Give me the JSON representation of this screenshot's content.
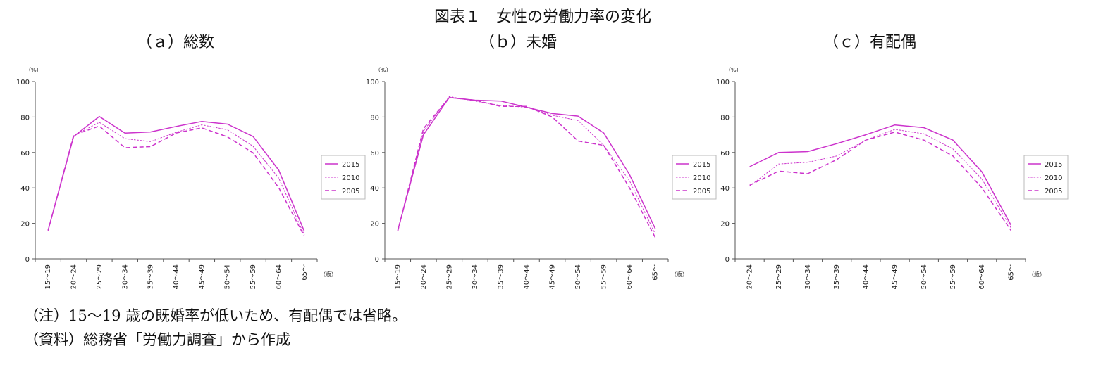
{
  "figure_title": "図表１　女性の労働力率の変化",
  "notes": {
    "note1": "（注）15～19 歳の既婚率が低いため、有配偶では省略。",
    "note2": "（資料）総務省「労働力調査」から作成"
  },
  "colors": {
    "line": "#cc33cc",
    "axis": "#555555"
  },
  "chart_data": [
    {
      "type": "line",
      "title": "（ａ）総数",
      "unit_label": "（%）",
      "x_unit": "（歳）",
      "categories": [
        "15～19",
        "20～24",
        "25～29",
        "30～34",
        "35～39",
        "40～44",
        "45～49",
        "50～54",
        "55～59",
        "60～64",
        "65～"
      ],
      "ylim": [
        0,
        100
      ],
      "yticks": [
        0,
        20,
        40,
        60,
        80,
        100
      ],
      "grid": false,
      "legend": "right",
      "series": [
        {
          "name": "2015",
          "style": "solid",
          "values": [
            16,
            69,
            80.3,
            70.9,
            71.6,
            74.7,
            77.5,
            76,
            69,
            50,
            15.5
          ]
        },
        {
          "name": "2010",
          "style": "dotted",
          "values": [
            16,
            69.5,
            77,
            67.8,
            66.1,
            71.4,
            75.6,
            72.8,
            63.5,
            45.5,
            13.5
          ]
        },
        {
          "name": "2005",
          "style": "dashed",
          "values": [
            16,
            69.8,
            74.9,
            62.7,
            63.3,
            71,
            73.9,
            68.8,
            59.8,
            40.1,
            12.7
          ]
        }
      ]
    },
    {
      "type": "line",
      "title": "（ｂ）未婚",
      "unit_label": "（%）",
      "x_unit": "（歳）",
      "categories": [
        "15～19",
        "20～24",
        "25～29",
        "30～34",
        "35～39",
        "40～44",
        "45～49",
        "50～54",
        "55～59",
        "60～64",
        "65～"
      ],
      "ylim": [
        0,
        100
      ],
      "yticks": [
        0,
        20,
        40,
        60,
        80,
        100
      ],
      "grid": false,
      "legend": "right",
      "series": [
        {
          "name": "2015",
          "style": "solid",
          "values": [
            16,
            70,
            91,
            89.5,
            89,
            85.5,
            82,
            80.5,
            71,
            47.5,
            17
          ]
        },
        {
          "name": "2010",
          "style": "dotted",
          "values": [
            16,
            72,
            91.5,
            89,
            86.5,
            85.5,
            81,
            78,
            64,
            44,
            14
          ]
        },
        {
          "name": "2005",
          "style": "dashed",
          "values": [
            15.5,
            73.5,
            91,
            89.5,
            86,
            86,
            80,
            66.5,
            64,
            40,
            12
          ]
        }
      ]
    },
    {
      "type": "line",
      "title": "（ｃ）有配偶",
      "unit_label": "（%）",
      "x_unit": "（歳）",
      "categories": [
        "20～24",
        "25～29",
        "30～34",
        "35～39",
        "40～44",
        "45～49",
        "50～54",
        "55～59",
        "60～64",
        "65～"
      ],
      "ylim": [
        0,
        100
      ],
      "yticks": [
        0,
        20,
        40,
        60,
        80,
        100
      ],
      "grid": false,
      "legend": "right",
      "series": [
        {
          "name": "2015",
          "style": "solid",
          "values": [
            52,
            60,
            60.5,
            65,
            70,
            75.5,
            74,
            67,
            49,
            19
          ]
        },
        {
          "name": "2010",
          "style": "dotted",
          "values": [
            41,
            53.5,
            54.5,
            58,
            67,
            73,
            70.5,
            62,
            45,
            17.5
          ]
        },
        {
          "name": "2005",
          "style": "dashed",
          "values": [
            41.5,
            49.5,
            48,
            56,
            67,
            71.5,
            67,
            58,
            40,
            16
          ]
        }
      ]
    }
  ]
}
